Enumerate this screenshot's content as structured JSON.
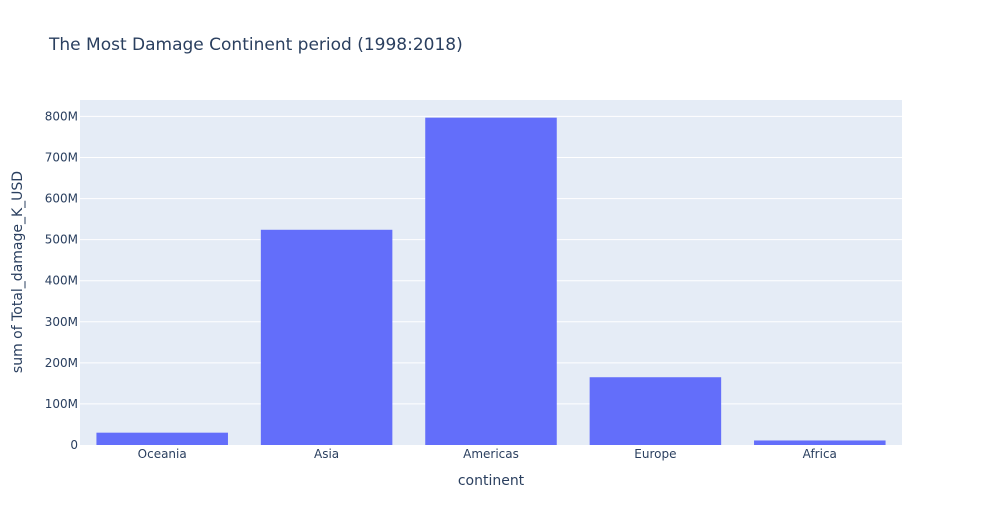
{
  "chart_data": {
    "type": "bar",
    "title": "The Most Damage Continent period (1998:2018)",
    "xlabel": "continent",
    "ylabel": "sum of Total_damage_K_USD",
    "categories": [
      "Oceania",
      "Asia",
      "Americas",
      "Europe",
      "Africa"
    ],
    "values": [
      30000000,
      524000000,
      797000000,
      165000000,
      11000000
    ],
    "ylim": [
      0,
      840000000
    ],
    "y_ticks": [
      0,
      100000000,
      200000000,
      300000000,
      400000000,
      500000000,
      600000000,
      700000000,
      800000000
    ],
    "y_tick_labels": [
      "0",
      "100M",
      "200M",
      "300M",
      "400M",
      "500M",
      "600M",
      "700M",
      "800M"
    ],
    "grid": true,
    "legend": "none",
    "colors": {
      "bar": "#636efa",
      "plot_bg": "#e5ecf6",
      "grid": "#ffffff",
      "text": "#2a3f5f"
    }
  }
}
